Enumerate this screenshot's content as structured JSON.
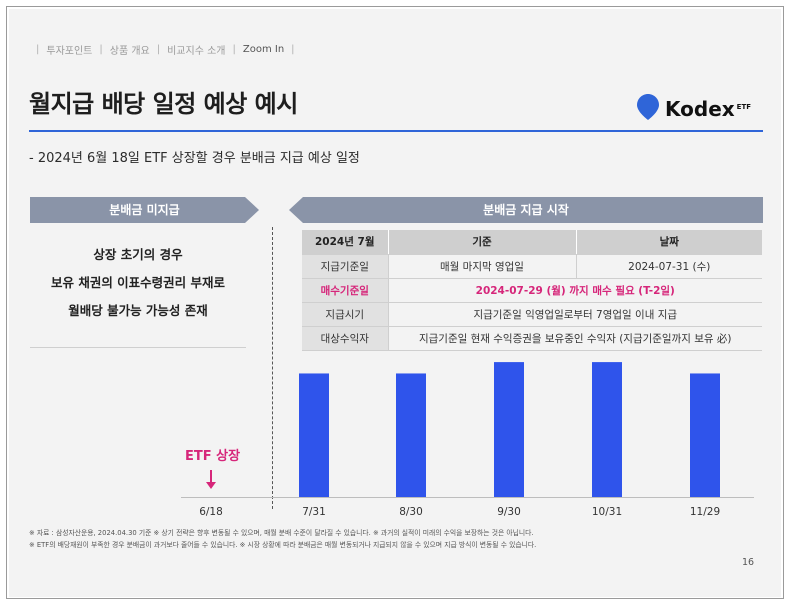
{
  "breadcrumb": {
    "items": [
      "투자포인트",
      "상품 개요",
      "비교지수 소개",
      "Zoom In"
    ],
    "active_index": 3
  },
  "title": "월지급 배당 일정 예상 예시",
  "logo": {
    "name": "Kodex",
    "sup": "ETF",
    "icon": "location-pin-icon",
    "color": "#2f65d8"
  },
  "subtitle": "- 2024년 6월 18일 ETF 상장할 경우 분배금 지급 예상 일정",
  "left_panel": {
    "banner": "분배금 미지급",
    "lines": [
      "상장 초기의 경우",
      "보유 채권의 이표수령권리 부재로",
      "월배당 불가능 가능성 존재"
    ]
  },
  "right_panel": {
    "banner": "분배금 지급 시작",
    "table": {
      "header": [
        "2024년 7월",
        "기준",
        "날짜"
      ],
      "rows": [
        {
          "label": "지급기준일",
          "c1": "매월 마지막 영업일",
          "c2": "2024-07-31 (수)",
          "highlight": false
        },
        {
          "label": "매수기준일",
          "c1": "2024-07-29 (월) 까지 매수 필요 (T-2일)",
          "c2": "",
          "highlight": true
        },
        {
          "label": "지급시기",
          "c1": "지급기준일 익영업일로부터 7영업일 이내 지급",
          "c2": "",
          "highlight": false
        },
        {
          "label": "대상수익자",
          "c1": "지급기준일 현재 수익증권을 보유중인 수익자 (지급기준일까지 보유 必)",
          "c2": "",
          "highlight": false
        }
      ]
    }
  },
  "chart_data": {
    "type": "bar",
    "categories": [
      "6/18",
      "7/31",
      "8/30",
      "9/30",
      "10/31",
      "11/29"
    ],
    "values": [
      0,
      0.87,
      0.87,
      0.95,
      0.95,
      0.87
    ],
    "ylim": [
      0,
      1
    ],
    "grid": false,
    "bar_color": "#2f54eb",
    "annotation": {
      "label": "ETF 상장",
      "category": "6/18",
      "color": "#d6267a"
    }
  },
  "footnotes": [
    "※ 자료 : 삼성자산운용, 2024.04.30 기준 ※ 상기 전략은 향후 변동될 수 있으며, 매월 분배 수준이 달라질 수 있습니다. ※ 과거의 실적이 미래의 수익을 보장하는 것은 아닙니다.",
    "※ ETF의 배당재원이 부족한 경우 분배금이 과거보다 줄어들 수 있습니다. ※ 시장 상황에 따라 분배금은 매월 변동되거나 지급되지 않을 수 있으며 지급 방식이 변동될 수 있습니다."
  ],
  "page_number": "16"
}
